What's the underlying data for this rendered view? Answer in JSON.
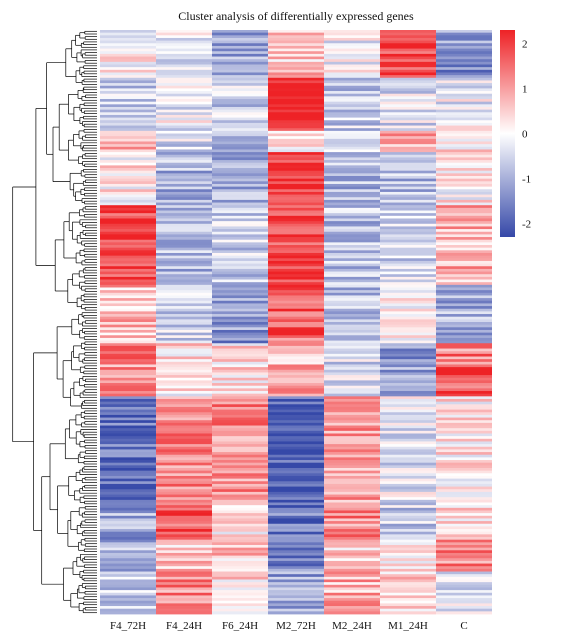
{
  "chart_data": {
    "type": "heatmap",
    "title": "Cluster analysis of differentially expressed genes",
    "columns": [
      "F4_72H",
      "F4_24H",
      "F6_24H",
      "M2_72H",
      "M2_24H",
      "M1_24H",
      "C"
    ],
    "row_count": 220,
    "row_dendrogram": true,
    "color_scale": {
      "min": -2.3,
      "max": 2.3,
      "ticks": [
        2,
        1,
        0,
        -1,
        -2
      ],
      "low_color": "#3548a8",
      "mid_color": "#ffffff",
      "high_color": "#ee2226"
    },
    "row_blocks": [
      {
        "rows": 18,
        "values": [
          0.1,
          -0.3,
          -1.0,
          0.6,
          -0.1,
          2.0,
          -1.3
        ]
      },
      {
        "rows": 20,
        "values": [
          -0.6,
          -0.2,
          -0.6,
          2.3,
          -0.6,
          -0.4,
          -0.2
        ]
      },
      {
        "rows": 8,
        "values": [
          0.8,
          -0.5,
          -1.2,
          0.3,
          -0.7,
          0.9,
          0.3
        ]
      },
      {
        "rows": 20,
        "values": [
          0.2,
          -0.9,
          -1.0,
          2.2,
          -0.9,
          -0.8,
          0.1
        ]
      },
      {
        "rows": 30,
        "values": [
          1.9,
          -0.9,
          -0.6,
          1.9,
          -0.8,
          -0.5,
          0.8
        ]
      },
      {
        "rows": 22,
        "values": [
          0.7,
          -0.6,
          -1.3,
          1.6,
          -0.8,
          0.1,
          -1.0
        ]
      },
      {
        "rows": 8,
        "values": [
          1.4,
          0.3,
          0.3,
          0.6,
          -0.5,
          -1.5,
          1.3
        ]
      },
      {
        "rows": 12,
        "values": [
          1.1,
          0.1,
          0.3,
          1.2,
          -0.3,
          -1.2,
          1.8
        ]
      },
      {
        "rows": 40,
        "values": [
          -1.8,
          1.2,
          1.2,
          -2.0,
          1.0,
          -0.3,
          0.2
        ]
      },
      {
        "rows": 14,
        "values": [
          -1.1,
          1.8,
          0.3,
          -1.7,
          1.2,
          -0.6,
          0.4
        ]
      },
      {
        "rows": 12,
        "values": [
          -0.9,
          0.5,
          0.6,
          -1.4,
          0.6,
          0.2,
          1.2
        ]
      },
      {
        "rows": 16,
        "values": [
          -0.6,
          1.2,
          0.4,
          -1.1,
          0.8,
          0.6,
          -0.4
        ]
      }
    ]
  }
}
